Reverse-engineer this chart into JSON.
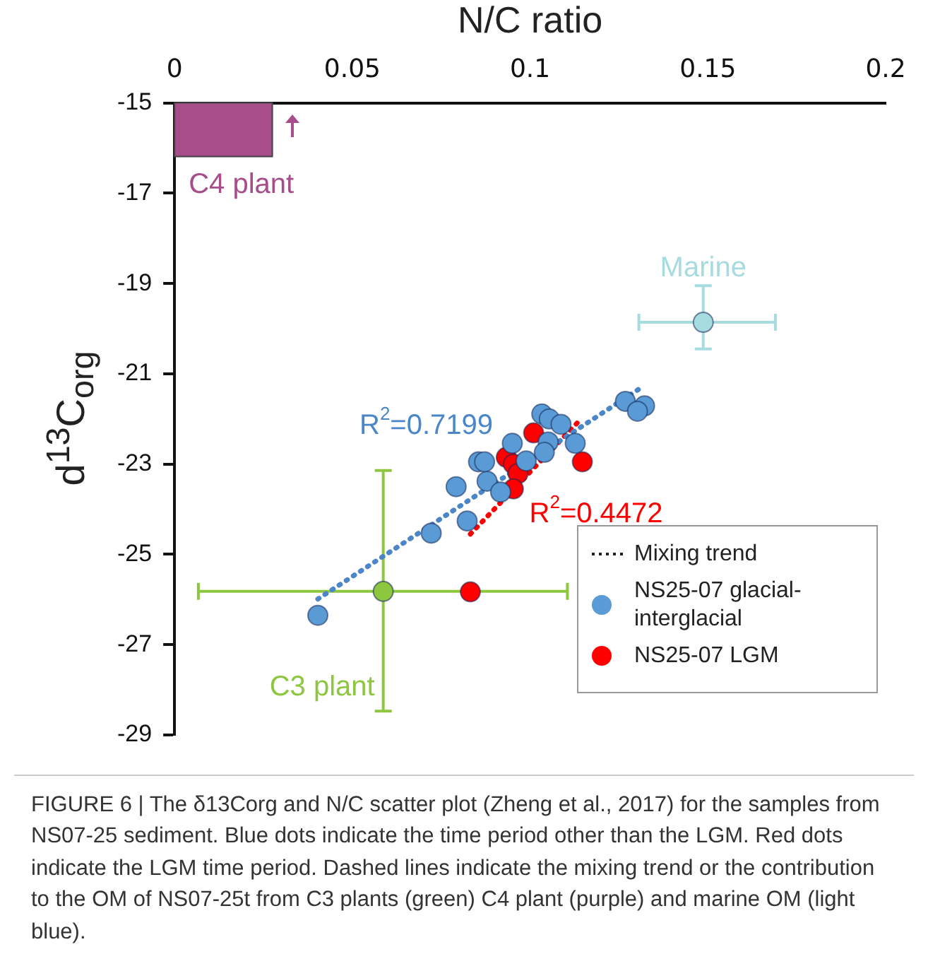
{
  "chart_data": {
    "type": "scatter",
    "xlabel": "N/C ratio",
    "ylabel": "d$^{13}$C$_{org}$",
    "xlim": [
      0,
      0.2
    ],
    "xticks": [
      0,
      0.05,
      0.1,
      0.15,
      0.2
    ],
    "ylim": [
      -29,
      -15
    ],
    "yticks": [
      -15,
      -17,
      -19,
      -21,
      -23,
      -25,
      -27,
      -29
    ],
    "grid": false,
    "legend": "bottom right",
    "marker": "circle",
    "series": [
      {
        "name": "NS25-07 glacial-interglacial",
        "color": "#5b9bd5",
        "x": [
          0.0403,
          0.0722,
          0.0823,
          0.0792,
          0.0879,
          0.0855,
          0.0872,
          0.0917,
          0.095,
          0.0989,
          0.1033,
          0.1054,
          0.1087,
          0.1051,
          0.104,
          0.1127,
          0.1268,
          0.1322,
          0.1302
        ],
        "values": [
          -26.35,
          -24.53,
          -24.26,
          -23.5,
          -23.38,
          -22.95,
          -22.95,
          -23.62,
          -22.54,
          -22.93,
          -21.89,
          -22.0,
          -22.12,
          -22.51,
          -22.74,
          -22.54,
          -21.61,
          -21.71,
          -21.83
        ]
      },
      {
        "name": "NS25-07 LGM",
        "color": "#ff0000",
        "x": [
          0.101,
          0.0933,
          0.0953,
          0.0966,
          0.0953,
          0.1147,
          0.0832
        ],
        "values": [
          -22.31,
          -22.85,
          -23.0,
          -23.21,
          -23.55,
          -22.95,
          -25.83
        ]
      },
      {
        "name": "R$^{2}$=0.7199",
        "type": "line",
        "color": "#4a86c8",
        "line_style": "dotted",
        "marker": "none",
        "x": [
          0.0403,
          0.1308
        ],
        "values": [
          -25.99,
          -21.33
        ]
      },
      {
        "name": "R$^{2}$=0.4472",
        "type": "line",
        "color": "#ff0000",
        "line_style": "dotted",
        "marker": "none",
        "x": [
          0.0832,
          0.1141
        ],
        "values": [
          -24.55,
          -22.02
        ]
      },
      {
        "type": "scatter",
        "color": "#8dc63f",
        "x": [
          0.0587
        ],
        "values": [
          -25.82
        ],
        "errors": [
          [
            -28.47,
            -23.14
          ]
        ],
        "xerrors": [
          [
            0.0067,
            0.1105
          ]
        ]
      },
      {
        "type": "scatter",
        "color": "#a6dbe0",
        "x": [
          0.1487
        ],
        "values": [
          -19.86
        ],
        "errors": [
          [
            -20.45,
            -19.05
          ]
        ],
        "xerrors": [
          [
            0.1306,
            0.169
          ]
        ]
      }
    ],
    "bands": [
      {
        "axis": "x",
        "from": 0,
        "to": 0.0275,
        "label": "C4 plant",
        "color": "#a64d8a"
      }
    ],
    "annotations": [
      "Mixing trend",
      {
        "text": "Marine",
        "x": 0.1487,
        "y": -19.86
      },
      {
        "text": "C3 plant",
        "x": 0.0587,
        "y": -25.82
      },
      "FIGURE 6 | The δ13Corg and N/C scatter plot (Zheng et al., 2017) for the samples from NS07-25 sediment. Blue dots indicate the time period other than the LGM. Red dots indicate the LGM time period. Dashed lines indicate the mixing trend or the contribution to the OM of NS07-25t from C3 plants (green) C4 plant (purple) and marine OM (light blue)."
    ]
  }
}
